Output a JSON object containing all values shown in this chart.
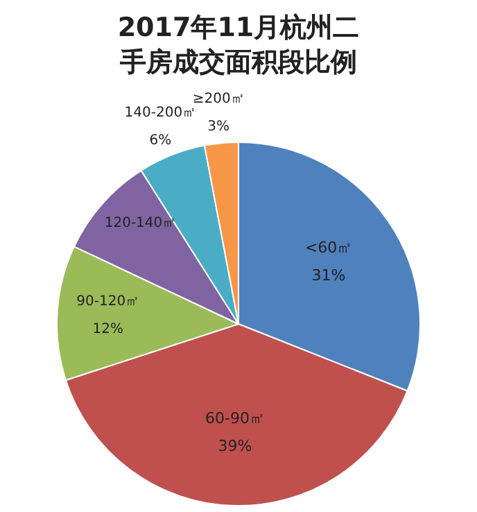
{
  "chart_data": {
    "type": "pie",
    "title": "2017年11月杭州二手房成交面积段比例",
    "categories": [
      "<60㎡",
      "60-90㎡",
      "90-120㎡",
      "120-140㎡",
      "140-200㎡",
      "≥200㎡"
    ],
    "values": [
      31,
      39,
      12,
      9,
      6,
      3
    ],
    "value_labels": [
      "31%",
      "39%",
      "12%",
      null,
      "6%",
      "3%"
    ],
    "colors": [
      "#4f81bd",
      "#c0504d",
      "#9bbb59",
      "#8064a2",
      "#4bacc6",
      "#f79646"
    ],
    "legend": false
  }
}
